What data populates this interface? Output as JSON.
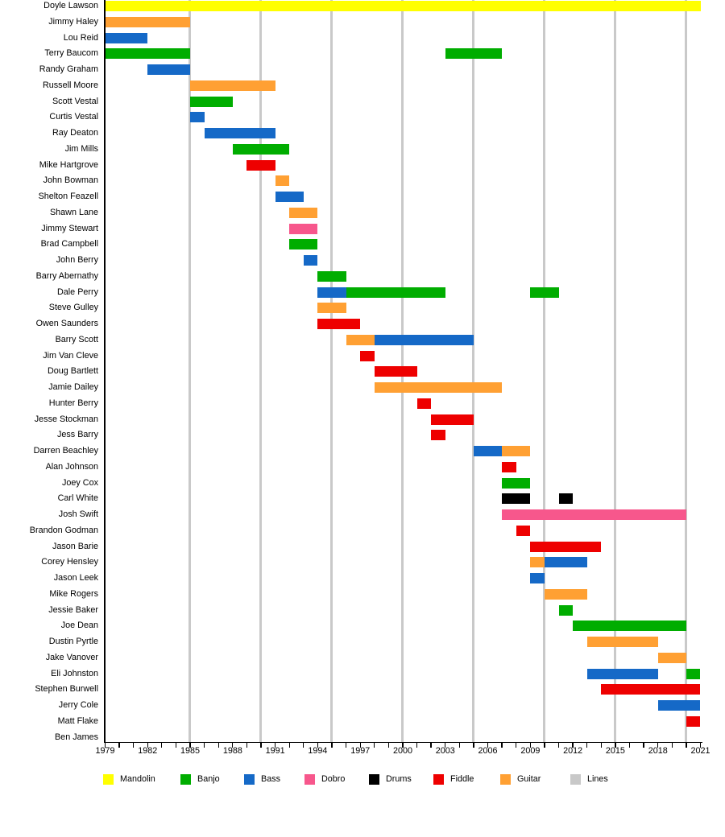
{
  "chart_data": {
    "type": "bar",
    "variant": "timeline-gantt",
    "title": "",
    "x_axis": {
      "min": 1979,
      "max": 2021,
      "tick_every_years": 1,
      "label_years": [
        1979,
        1982,
        1985,
        1988,
        1991,
        1994,
        1997,
        2000,
        2003,
        2006,
        2009,
        2012,
        2015,
        2018,
        2021
      ],
      "gridline_years": [
        1985,
        1990,
        1995,
        2000,
        2005,
        2010,
        2015,
        2020
      ]
    },
    "legend": [
      {
        "id": "mandolin",
        "label": "Mandolin",
        "color": "#FFFF00"
      },
      {
        "id": "banjo",
        "label": "Banjo",
        "color": "#00AD00"
      },
      {
        "id": "bass",
        "label": "Bass",
        "color": "#1569C7"
      },
      {
        "id": "dobro",
        "label": "Dobro",
        "color": "#F7578C"
      },
      {
        "id": "drums",
        "label": "Drums",
        "color": "#000000"
      },
      {
        "id": "fiddle",
        "label": "Fiddle",
        "color": "#EE0000"
      },
      {
        "id": "guitar",
        "label": "Guitar",
        "color": "#FFA033"
      },
      {
        "id": "lines",
        "label": "Lines",
        "color": "#C8C8C8"
      }
    ],
    "rows": [
      {
        "name": "Doyle Lawson",
        "bars": [
          {
            "from": 1979,
            "to": 2021,
            "instrument": "Mandolin"
          }
        ]
      },
      {
        "name": "Jimmy Haley",
        "bars": [
          {
            "from": 1979,
            "to": 1985,
            "instrument": "Guitar"
          }
        ]
      },
      {
        "name": "Lou Reid",
        "bars": [
          {
            "from": 1979,
            "to": 1982,
            "instrument": "Bass"
          }
        ]
      },
      {
        "name": "Terry Baucom",
        "bars": [
          {
            "from": 1979,
            "to": 1985,
            "instrument": "Banjo"
          },
          {
            "from": 2003,
            "to": 2007,
            "instrument": "Banjo"
          }
        ]
      },
      {
        "name": "Randy Graham",
        "bars": [
          {
            "from": 1982,
            "to": 1985,
            "instrument": "Bass"
          }
        ]
      },
      {
        "name": "Russell Moore",
        "bars": [
          {
            "from": 1985,
            "to": 1991,
            "instrument": "Guitar"
          }
        ]
      },
      {
        "name": "Scott Vestal",
        "bars": [
          {
            "from": 1985,
            "to": 1988,
            "instrument": "Banjo"
          }
        ]
      },
      {
        "name": "Curtis Vestal",
        "bars": [
          {
            "from": 1985,
            "to": 1986,
            "instrument": "Bass"
          }
        ]
      },
      {
        "name": "Ray Deaton",
        "bars": [
          {
            "from": 1986,
            "to": 1991,
            "instrument": "Bass"
          }
        ]
      },
      {
        "name": "Jim Mills",
        "bars": [
          {
            "from": 1988,
            "to": 1992,
            "instrument": "Banjo"
          }
        ]
      },
      {
        "name": "Mike Hartgrove",
        "bars": [
          {
            "from": 1989,
            "to": 1991,
            "instrument": "Fiddle"
          }
        ]
      },
      {
        "name": "John Bowman",
        "bars": [
          {
            "from": 1991,
            "to": 1992,
            "instrument": "Guitar"
          }
        ]
      },
      {
        "name": "Shelton Feazell",
        "bars": [
          {
            "from": 1991,
            "to": 1993,
            "instrument": "Bass"
          }
        ]
      },
      {
        "name": "Shawn Lane",
        "bars": [
          {
            "from": 1992,
            "to": 1994,
            "instrument": "Guitar"
          }
        ]
      },
      {
        "name": "Jimmy Stewart",
        "bars": [
          {
            "from": 1992,
            "to": 1994,
            "instrument": "Dobro"
          }
        ]
      },
      {
        "name": "Brad Campbell",
        "bars": [
          {
            "from": 1992,
            "to": 1994,
            "instrument": "Banjo"
          }
        ]
      },
      {
        "name": "John Berry",
        "bars": [
          {
            "from": 1993,
            "to": 1994,
            "instrument": "Bass"
          }
        ]
      },
      {
        "name": "Barry Abernathy",
        "bars": [
          {
            "from": 1994,
            "to": 1996,
            "instrument": "Banjo"
          }
        ]
      },
      {
        "name": "Dale Perry",
        "bars": [
          {
            "from": 1994,
            "to": 1996,
            "instrument": "Bass"
          },
          {
            "from": 1996,
            "to": 2003,
            "instrument": "Banjo"
          },
          {
            "from": 2009,
            "to": 2011,
            "instrument": "Banjo"
          }
        ]
      },
      {
        "name": "Steve Gulley",
        "bars": [
          {
            "from": 1994,
            "to": 1996,
            "instrument": "Guitar"
          }
        ]
      },
      {
        "name": "Owen Saunders",
        "bars": [
          {
            "from": 1994,
            "to": 1997,
            "instrument": "Fiddle"
          }
        ]
      },
      {
        "name": "Barry Scott",
        "bars": [
          {
            "from": 1996,
            "to": 1998,
            "instrument": "Guitar"
          },
          {
            "from": 1998,
            "to": 2005,
            "instrument": "Bass"
          }
        ]
      },
      {
        "name": "Jim Van Cleve",
        "bars": [
          {
            "from": 1997,
            "to": 1998,
            "instrument": "Fiddle"
          }
        ]
      },
      {
        "name": "Doug Bartlett",
        "bars": [
          {
            "from": 1998,
            "to": 2001,
            "instrument": "Fiddle"
          }
        ]
      },
      {
        "name": "Jamie Dailey",
        "bars": [
          {
            "from": 1998,
            "to": 2007,
            "instrument": "Guitar"
          }
        ]
      },
      {
        "name": "Hunter Berry",
        "bars": [
          {
            "from": 2001,
            "to": 2002,
            "instrument": "Fiddle"
          }
        ]
      },
      {
        "name": "Jesse Stockman",
        "bars": [
          {
            "from": 2002,
            "to": 2005,
            "instrument": "Fiddle"
          }
        ]
      },
      {
        "name": "Jess Barry",
        "bars": [
          {
            "from": 2002,
            "to": 2003,
            "instrument": "Fiddle"
          }
        ]
      },
      {
        "name": "Darren Beachley",
        "bars": [
          {
            "from": 2005,
            "to": 2007,
            "instrument": "Bass"
          },
          {
            "from": 2007,
            "to": 2009,
            "instrument": "Guitar"
          }
        ]
      },
      {
        "name": "Alan Johnson",
        "bars": [
          {
            "from": 2007,
            "to": 2008,
            "instrument": "Fiddle"
          }
        ]
      },
      {
        "name": "Joey Cox",
        "bars": [
          {
            "from": 2007,
            "to": 2009,
            "instrument": "Banjo"
          }
        ]
      },
      {
        "name": "Carl White",
        "bars": [
          {
            "from": 2007,
            "to": 2009,
            "instrument": "Drums"
          },
          {
            "from": 2011,
            "to": 2012,
            "instrument": "Drums"
          }
        ]
      },
      {
        "name": "Josh Swift",
        "bars": [
          {
            "from": 2007,
            "to": 2020,
            "instrument": "Dobro"
          }
        ]
      },
      {
        "name": "Brandon Godman",
        "bars": [
          {
            "from": 2008,
            "to": 2009,
            "instrument": "Fiddle"
          }
        ]
      },
      {
        "name": "Jason Barie",
        "bars": [
          {
            "from": 2009,
            "to": 2014,
            "instrument": "Fiddle"
          }
        ]
      },
      {
        "name": "Corey Hensley",
        "bars": [
          {
            "from": 2009,
            "to": 2010,
            "instrument": "Guitar"
          },
          {
            "from": 2010,
            "to": 2013,
            "instrument": "Bass"
          }
        ]
      },
      {
        "name": "Jason Leek",
        "bars": [
          {
            "from": 2009,
            "to": 2010,
            "instrument": "Bass"
          }
        ]
      },
      {
        "name": "Mike Rogers",
        "bars": [
          {
            "from": 2010,
            "to": 2013,
            "instrument": "Guitar"
          }
        ]
      },
      {
        "name": "Jessie Baker",
        "bars": [
          {
            "from": 2011,
            "to": 2012,
            "instrument": "Banjo"
          }
        ]
      },
      {
        "name": "Joe Dean",
        "bars": [
          {
            "from": 2012,
            "to": 2020,
            "instrument": "Banjo"
          }
        ]
      },
      {
        "name": "Dustin Pyrtle",
        "bars": [
          {
            "from": 2013,
            "to": 2018,
            "instrument": "Guitar"
          }
        ]
      },
      {
        "name": "Jake Vanover",
        "bars": [
          {
            "from": 2018,
            "to": 2020,
            "instrument": "Guitar"
          }
        ]
      },
      {
        "name": "Eli Johnston",
        "bars": [
          {
            "from": 2013,
            "to": 2018,
            "instrument": "Bass"
          },
          {
            "from": 2020,
            "to": 2021,
            "instrument": "Banjo"
          }
        ]
      },
      {
        "name": "Stephen Burwell",
        "bars": [
          {
            "from": 2014,
            "to": 2021,
            "instrument": "Fiddle"
          }
        ]
      },
      {
        "name": "Jerry Cole",
        "bars": [
          {
            "from": 2018,
            "to": 2021,
            "instrument": "Bass"
          }
        ]
      },
      {
        "name": "Matt Flake",
        "bars": [
          {
            "from": 2020,
            "to": 2021,
            "instrument": "Fiddle"
          }
        ]
      },
      {
        "name": "Ben James",
        "bars": []
      }
    ]
  }
}
